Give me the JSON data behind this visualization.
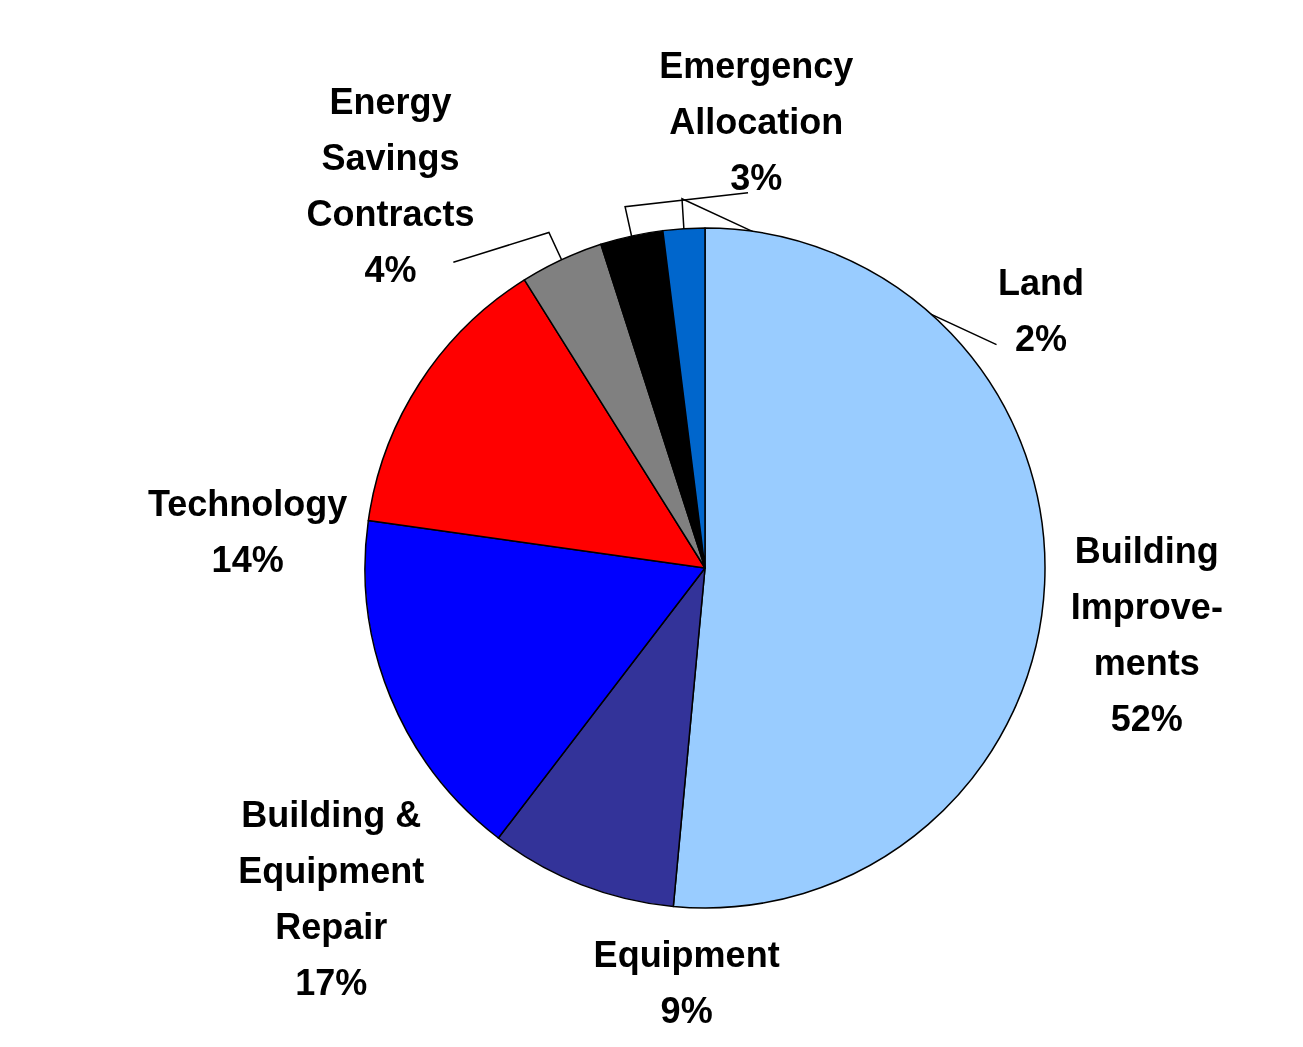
{
  "chart_data": {
    "type": "pie",
    "categories": [
      "Building\nImprove-\nments",
      "Equipment",
      "Building &\nEquipment\nRepair",
      "Technology",
      "Energy\nSavings\nContracts",
      "Emergency\nAllocation",
      "Land"
    ],
    "values": [
      52,
      9,
      17,
      14,
      4,
      3,
      2
    ],
    "value_labels": [
      "52%",
      "9%",
      "17%",
      "14%",
      "4%",
      "3%",
      "2%"
    ],
    "colors": [
      "#99ccff",
      "#333399",
      "#0000ff",
      "#ff0000",
      "#808080",
      "#000000",
      "#0066cc"
    ],
    "legend": false
  }
}
